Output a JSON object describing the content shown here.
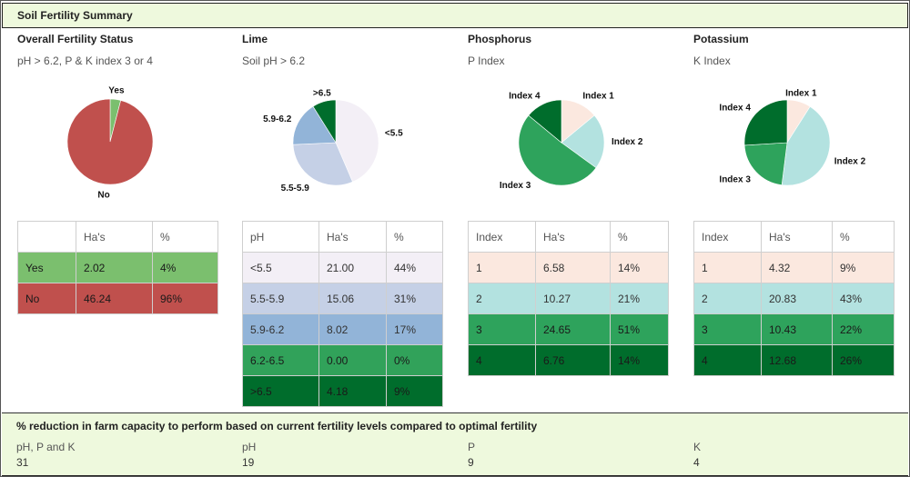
{
  "header": {
    "title": "Soil Fertility Summary"
  },
  "panels": [
    {
      "title": "Overall Fertility Status",
      "subtitle": "pH > 6.2, P & K index 3 or 4",
      "table": {
        "headers": [
          "",
          "Ha's",
          "%"
        ],
        "rows": [
          {
            "cells": [
              "Yes",
              "2.02",
              "4%"
            ],
            "bg": "#7bbf6e",
            "fg": "#1a1a1a"
          },
          {
            "cells": [
              "No",
              "46.24",
              "96%"
            ],
            "bg": "#c0504d",
            "fg": "#1a1a1a"
          }
        ]
      }
    },
    {
      "title": "Lime",
      "subtitle": "Soil pH > 6.2",
      "table": {
        "headers": [
          "pH",
          "Ha's",
          "%"
        ],
        "rows": [
          {
            "cells": [
              "<5.5",
              "21.00",
              "44%"
            ],
            "bg": "#f3eff6",
            "fg": "#333333"
          },
          {
            "cells": [
              "5.5-5.9",
              "15.06",
              "31%"
            ],
            "bg": "#c5d0e6",
            "fg": "#333333"
          },
          {
            "cells": [
              "5.9-6.2",
              "8.02",
              "17%"
            ],
            "bg": "#92b4d8",
            "fg": "#333333"
          },
          {
            "cells": [
              "6.2-6.5",
              "0.00",
              "0%"
            ],
            "bg": "#31a25a",
            "fg": "#1a1a1a"
          },
          {
            "cells": [
              ">6.5",
              "4.18",
              "9%"
            ],
            "bg": "#006d2c",
            "fg": "#1a1a1a"
          }
        ]
      }
    },
    {
      "title": "Phosphorus",
      "subtitle": "P Index",
      "table": {
        "headers": [
          "Index",
          "Ha's",
          "%"
        ],
        "rows": [
          {
            "cells": [
              "1",
              "6.58",
              "14%"
            ],
            "bg": "#fbe8df",
            "fg": "#333333"
          },
          {
            "cells": [
              "2",
              "10.27",
              "21%"
            ],
            "bg": "#b3e2e0",
            "fg": "#333333"
          },
          {
            "cells": [
              "3",
              "24.65",
              "51%"
            ],
            "bg": "#2ea35c",
            "fg": "#1a1a1a"
          },
          {
            "cells": [
              "4",
              "6.76",
              "14%"
            ],
            "bg": "#006d2c",
            "fg": "#1a1a1a"
          }
        ]
      }
    },
    {
      "title": "Potassium",
      "subtitle": "K Index",
      "table": {
        "headers": [
          "Index",
          "Ha's",
          "%"
        ],
        "rows": [
          {
            "cells": [
              "1",
              "4.32",
              "9%"
            ],
            "bg": "#fbe8df",
            "fg": "#333333"
          },
          {
            "cells": [
              "2",
              "20.83",
              "43%"
            ],
            "bg": "#b3e2e0",
            "fg": "#333333"
          },
          {
            "cells": [
              "3",
              "10.43",
              "22%"
            ],
            "bg": "#2ea35c",
            "fg": "#1a1a1a"
          },
          {
            "cells": [
              "4",
              "12.68",
              "26%"
            ],
            "bg": "#006d2c",
            "fg": "#1a1a1a"
          }
        ]
      }
    }
  ],
  "chart_data": [
    {
      "type": "pie",
      "labels": [
        "Yes",
        "No"
      ],
      "values": [
        4,
        96
      ],
      "colors": [
        "#7bbf6e",
        "#c0504d"
      ]
    },
    {
      "type": "pie",
      "labels": [
        "<5.5",
        "5.5-5.9",
        "5.9-6.2",
        "6.2-6.5",
        ">6.5"
      ],
      "values": [
        44,
        31,
        17,
        0,
        9
      ],
      "colors": [
        "#f3eff6",
        "#c5d0e6",
        "#92b4d8",
        "#31a25a",
        "#006d2c"
      ]
    },
    {
      "type": "pie",
      "labels": [
        "Index 1",
        "Index 2",
        "Index 3",
        "Index 4"
      ],
      "values": [
        14,
        21,
        51,
        14
      ],
      "colors": [
        "#fbe8df",
        "#b3e2e0",
        "#2ea35c",
        "#006d2c"
      ]
    },
    {
      "type": "pie",
      "labels": [
        "Index 1",
        "Index 2",
        "Index 3",
        "Index 4"
      ],
      "values": [
        9,
        43,
        22,
        26
      ],
      "colors": [
        "#fbe8df",
        "#b3e2e0",
        "#2ea35c",
        "#006d2c"
      ]
    }
  ],
  "footer": {
    "title": "% reduction in farm capacity to perform based on current fertility levels compared to optimal fertility",
    "items": [
      {
        "label": "pH, P and K",
        "value": "31"
      },
      {
        "label": "pH",
        "value": "19"
      },
      {
        "label": "P",
        "value": "9"
      },
      {
        "label": "K",
        "value": "4"
      }
    ]
  }
}
